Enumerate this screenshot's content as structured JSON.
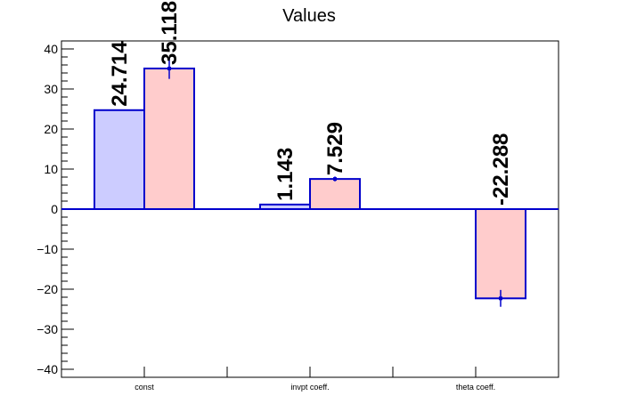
{
  "chart_data": {
    "type": "bar",
    "title": "Values",
    "xlabel": "",
    "ylabel": "",
    "categories": [
      "const",
      "invpt coeff.",
      "theta coeff."
    ],
    "series": [
      {
        "values": [
          24.714,
          1.143,
          null
        ],
        "errors": [
          0,
          0,
          0
        ],
        "color": "#ccccff",
        "edge_color": "#0000cc"
      },
      {
        "values": [
          35.118,
          7.529,
          -22.288
        ],
        "errors": [
          2.6,
          0.6,
          2.1
        ],
        "color": "#ffcccc",
        "edge_color": "#0000cc"
      }
    ],
    "value_labels": [
      {
        "series": 0,
        "category": 0,
        "text": "24.714"
      },
      {
        "series": 1,
        "category": 0,
        "text": "35.118"
      },
      {
        "series": 0,
        "category": 1,
        "text": "1.143"
      },
      {
        "series": 1,
        "category": 1,
        "text": "7.529"
      },
      {
        "series": 1,
        "category": 2,
        "text": "-22.288"
      }
    ],
    "ylim": [
      -42,
      42
    ],
    "yticks": [
      -40,
      -30,
      -20,
      -10,
      0,
      10,
      20,
      30,
      40
    ],
    "ytick_labels": [
      "−40",
      "−30",
      "−20",
      "−10",
      "0",
      "10",
      "20",
      "30",
      "40"
    ],
    "grid": false,
    "legend": "none"
  }
}
